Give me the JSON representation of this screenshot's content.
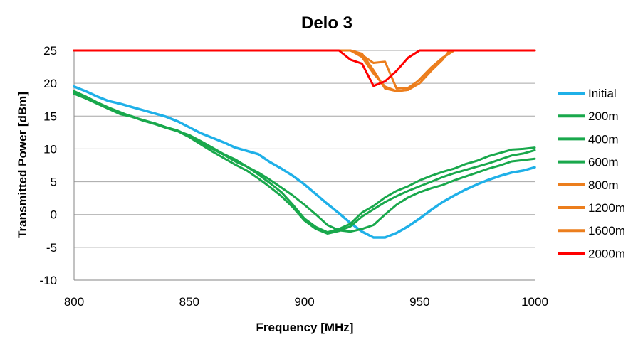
{
  "chart_data": {
    "type": "line",
    "title": "Delo 3",
    "xlabel": "Frequency [MHz]",
    "ylabel": "Transmitted Power [dBm]",
    "xlim": [
      800,
      1000
    ],
    "ylim": [
      -10,
      25
    ],
    "xticks": [
      800,
      850,
      900,
      950,
      1000
    ],
    "yticks": [
      25,
      20,
      15,
      10,
      5,
      0,
      -5,
      -10
    ],
    "grid": "horizontal",
    "legend_position": "right",
    "series": [
      {
        "name": "Initial",
        "color": "#1fb0e8",
        "x": [
          800,
          805,
          810,
          815,
          820,
          825,
          830,
          835,
          840,
          845,
          850,
          855,
          860,
          865,
          870,
          875,
          880,
          885,
          890,
          895,
          900,
          905,
          910,
          915,
          920,
          925,
          930,
          935,
          940,
          945,
          950,
          955,
          960,
          965,
          970,
          975,
          980,
          985,
          990,
          995,
          1000
        ],
        "y": [
          19.5,
          18.8,
          18.0,
          17.3,
          16.9,
          16.4,
          15.9,
          15.4,
          14.9,
          14.2,
          13.3,
          12.4,
          11.7,
          11.0,
          10.2,
          9.7,
          9.2,
          8.0,
          7.0,
          5.9,
          4.6,
          3.1,
          1.6,
          0.2,
          -1.3,
          -2.6,
          -3.5,
          -3.5,
          -2.8,
          -1.8,
          -0.6,
          0.7,
          1.9,
          2.9,
          3.8,
          4.6,
          5.3,
          5.9,
          6.4,
          6.7,
          7.2
        ]
      },
      {
        "name": "200m",
        "color": "#19a84c",
        "x": [
          800,
          805,
          810,
          815,
          820,
          825,
          830,
          835,
          840,
          845,
          850,
          855,
          860,
          865,
          870,
          875,
          880,
          885,
          890,
          895,
          900,
          905,
          910,
          915,
          920,
          925,
          930,
          935,
          940,
          945,
          950,
          955,
          960,
          965,
          970,
          975,
          980,
          985,
          990,
          995,
          1000
        ],
        "y": [
          18.6,
          17.8,
          17.0,
          16.1,
          15.4,
          15.0,
          14.3,
          13.9,
          13.3,
          12.8,
          12.0,
          11.0,
          10.0,
          9.1,
          8.1,
          7.3,
          6.4,
          5.3,
          4.1,
          2.9,
          1.5,
          0.0,
          -1.6,
          -2.4,
          -2.6,
          -2.2,
          -1.6,
          0.0,
          1.5,
          2.6,
          3.4,
          4.0,
          4.5,
          5.2,
          5.8,
          6.4,
          7.0,
          7.5,
          8.1,
          8.3,
          8.5
        ]
      },
      {
        "name": "400m",
        "color": "#19a84c",
        "x": [
          800,
          805,
          810,
          815,
          820,
          825,
          830,
          835,
          840,
          845,
          850,
          855,
          860,
          865,
          870,
          875,
          880,
          885,
          890,
          895,
          900,
          905,
          910,
          915,
          920,
          925,
          930,
          935,
          940,
          945,
          950,
          955,
          960,
          965,
          970,
          975,
          980,
          985,
          990,
          995,
          1000
        ],
        "y": [
          18.4,
          17.7,
          16.9,
          16.1,
          15.3,
          14.9,
          14.4,
          13.9,
          13.3,
          12.7,
          11.8,
          10.7,
          9.6,
          8.6,
          7.6,
          6.7,
          5.5,
          4.2,
          2.8,
          1.1,
          -0.9,
          -2.2,
          -2.9,
          -2.5,
          -1.8,
          -0.3,
          0.8,
          1.9,
          2.8,
          3.6,
          4.3,
          5.0,
          5.7,
          6.3,
          6.8,
          7.3,
          7.8,
          8.4,
          9.0,
          9.3,
          9.8
        ]
      },
      {
        "name": "600m",
        "color": "#19a84c",
        "x": [
          800,
          805,
          810,
          815,
          820,
          825,
          830,
          835,
          840,
          845,
          850,
          855,
          860,
          865,
          870,
          875,
          880,
          885,
          890,
          895,
          900,
          905,
          910,
          915,
          920,
          925,
          930,
          935,
          940,
          945,
          950,
          955,
          960,
          965,
          970,
          975,
          980,
          985,
          990,
          995,
          1000
        ],
        "y": [
          18.8,
          18.0,
          17.1,
          16.3,
          15.6,
          14.9,
          14.3,
          13.8,
          13.2,
          12.7,
          12.1,
          11.2,
          10.2,
          9.2,
          8.4,
          7.3,
          6.1,
          4.8,
          3.4,
          1.5,
          -0.6,
          -1.9,
          -2.7,
          -2.2,
          -1.4,
          0.3,
          1.3,
          2.6,
          3.6,
          4.3,
          5.2,
          5.9,
          6.5,
          7.0,
          7.7,
          8.2,
          8.9,
          9.4,
          9.9,
          10.0,
          10.2
        ]
      },
      {
        "name": "800m",
        "color": "#ec7e1d",
        "x": [
          800,
          915,
          920,
          925,
          930,
          935,
          940,
          945,
          950,
          955,
          960,
          965,
          1000
        ],
        "y": [
          25,
          25,
          25,
          24.3,
          23.1,
          23.3,
          19.2,
          19.3,
          20.5,
          22.3,
          23.9,
          25,
          25
        ]
      },
      {
        "name": "1200m",
        "color": "#ec7e1d",
        "x": [
          800,
          918,
          920,
          925,
          930,
          935,
          940,
          945,
          950,
          955,
          960,
          965,
          1000
        ],
        "y": [
          25,
          25,
          25,
          24.5,
          22.0,
          19.2,
          18.8,
          19.0,
          20.6,
          22.4,
          23.9,
          25,
          25
        ]
      },
      {
        "name": "1600m",
        "color": "#ec7e1d",
        "x": [
          800,
          920,
          925,
          930,
          935,
          940,
          945,
          950,
          955,
          960,
          963,
          1000
        ],
        "y": [
          25,
          25,
          24.0,
          21.5,
          19.5,
          18.8,
          19.0,
          20.0,
          21.9,
          23.6,
          25,
          25
        ]
      },
      {
        "name": "2000m",
        "color": "#ff0000",
        "x": [
          800,
          915,
          920,
          925,
          930,
          935,
          940,
          945,
          950,
          1000
        ],
        "y": [
          25,
          25,
          23.6,
          23.0,
          19.6,
          20.3,
          21.9,
          23.9,
          25,
          25
        ]
      }
    ]
  }
}
